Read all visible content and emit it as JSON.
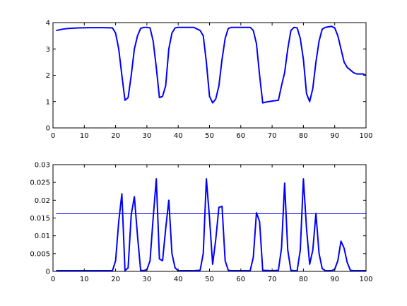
{
  "figure": {
    "background": "#ffffff",
    "line_color": "#0000ff"
  },
  "chart_data": [
    {
      "type": "line",
      "xlim": [
        0,
        100
      ],
      "ylim": [
        0,
        4
      ],
      "xticks": [
        0,
        10,
        20,
        30,
        40,
        50,
        60,
        70,
        80,
        90,
        100
      ],
      "yticks": [
        0,
        1,
        2,
        3,
        4
      ],
      "xtick_labels": [
        "0",
        "10",
        "20",
        "30",
        "40",
        "50",
        "60",
        "70",
        "80",
        "90",
        "100"
      ],
      "ytick_labels": [
        "0",
        "1",
        "2",
        "3",
        "4"
      ],
      "grid": false,
      "series": [
        {
          "color": "#0000ff",
          "x": [
            1,
            3,
            5,
            8,
            12,
            16,
            19,
            20,
            21,
            22,
            23,
            24,
            25,
            26,
            27,
            28,
            29,
            30,
            31,
            32,
            33,
            34,
            35,
            36,
            37,
            38,
            39,
            40,
            42,
            45,
            47,
            48,
            49,
            50,
            51,
            52,
            53,
            54,
            55,
            56,
            57,
            58,
            60,
            63,
            64,
            65,
            66,
            67,
            68,
            70,
            72,
            73,
            74,
            75,
            76,
            77,
            78,
            79,
            80,
            81,
            82,
            83,
            84,
            85,
            86,
            87,
            88,
            89,
            90,
            91,
            92,
            93,
            94,
            95,
            96,
            97,
            98,
            99,
            100
          ],
          "y": [
            3.7,
            3.75,
            3.78,
            3.8,
            3.81,
            3.81,
            3.8,
            3.6,
            3.0,
            2.0,
            1.05,
            1.15,
            2.0,
            3.0,
            3.5,
            3.78,
            3.82,
            3.82,
            3.8,
            3.3,
            2.3,
            1.15,
            1.2,
            1.6,
            3.0,
            3.6,
            3.8,
            3.82,
            3.82,
            3.82,
            3.7,
            3.5,
            2.5,
            1.2,
            0.95,
            1.1,
            1.6,
            2.6,
            3.4,
            3.78,
            3.82,
            3.82,
            3.82,
            3.82,
            3.7,
            3.2,
            2.0,
            0.95,
            0.98,
            1.02,
            1.05,
            1.6,
            2.1,
            3.0,
            3.7,
            3.82,
            3.8,
            3.4,
            2.6,
            1.3,
            1.0,
            1.5,
            2.5,
            3.3,
            3.75,
            3.82,
            3.84,
            3.86,
            3.8,
            3.5,
            3.0,
            2.5,
            2.3,
            2.2,
            2.1,
            2.05,
            2.05,
            2.05,
            2.0
          ]
        }
      ]
    },
    {
      "type": "line",
      "xlim": [
        0,
        100
      ],
      "ylim": [
        0,
        0.03
      ],
      "xticks": [
        0,
        10,
        20,
        30,
        40,
        50,
        60,
        70,
        80,
        90,
        100
      ],
      "yticks": [
        0,
        0.005,
        0.01,
        0.015,
        0.02,
        0.025,
        0.03
      ],
      "xtick_labels": [
        "0",
        "10",
        "20",
        "30",
        "40",
        "50",
        "60",
        "70",
        "80",
        "90",
        "100"
      ],
      "ytick_labels": [
        "0",
        "0.005",
        "0.01",
        "0.015",
        "0.02",
        "0.025",
        "0.03"
      ],
      "grid": false,
      "series": [
        {
          "color": "#0000ff",
          "x": [
            1,
            2,
            5,
            10,
            15,
            19,
            20,
            21,
            22,
            23,
            24,
            25,
            26,
            27,
            28,
            29,
            30,
            31,
            32,
            33,
            34,
            35,
            36,
            37,
            38,
            39,
            40,
            41,
            45,
            47,
            48,
            49,
            50,
            51,
            52,
            53,
            54,
            55,
            56,
            57,
            60,
            63,
            64,
            65,
            66,
            67,
            70,
            72,
            73,
            74,
            75,
            76,
            77,
            78,
            79,
            80,
            81,
            82,
            83,
            84,
            85,
            86,
            87,
            88,
            89,
            90,
            91,
            92,
            93,
            94,
            95,
            96,
            97,
            98,
            100
          ],
          "y": [
            0.0002,
            0.0002,
            0.0002,
            0.0002,
            0.0002,
            0.0002,
            0.003,
            0.014,
            0.0218,
            0.0002,
            0.001,
            0.016,
            0.021,
            0.01,
            0.0003,
            0.0002,
            0.0005,
            0.003,
            0.015,
            0.026,
            0.0035,
            0.003,
            0.012,
            0.02,
            0.005,
            0.001,
            0.0002,
            0.0002,
            0.0002,
            0.0003,
            0.005,
            0.026,
            0.015,
            0.002,
            0.009,
            0.018,
            0.0183,
            0.003,
            0.0003,
            0.0002,
            0.0002,
            0.0002,
            0.004,
            0.0165,
            0.014,
            0.0003,
            0.0002,
            0.0003,
            0.0065,
            0.0248,
            0.006,
            0.0003,
            0.0002,
            0.0002,
            0.006,
            0.026,
            0.012,
            0.002,
            0.006,
            0.0163,
            0.005,
            0.0008,
            0.0002,
            0.0002,
            0.0002,
            0.0006,
            0.003,
            0.0085,
            0.0065,
            0.0025,
            0.0003,
            0.0002,
            0.0002,
            0.0002,
            0.0002
          ]
        },
        {
          "color": "#0000ff",
          "x": [
            1,
            100
          ],
          "y": [
            0.0162,
            0.0162
          ]
        }
      ]
    }
  ]
}
